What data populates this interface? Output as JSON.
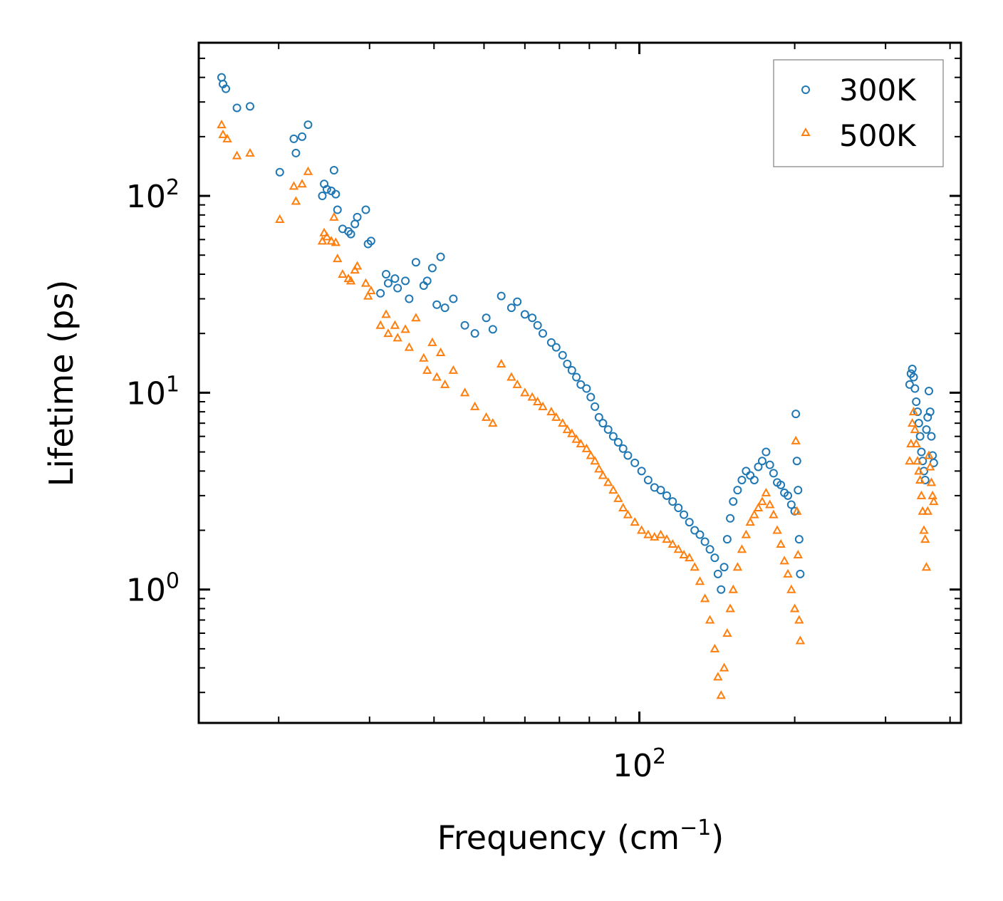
{
  "chart_data": {
    "type": "scatter",
    "title": "",
    "xlabel": "Frequency (cm",
    "xlabel_sup": "−1",
    "xlabel_tail": ")",
    "ylabel": "Lifetime (ps)",
    "x_scale": "log",
    "y_scale": "log",
    "xlim": [
      14,
      420
    ],
    "ylim": [
      0.21,
      600
    ],
    "x_tick_labels": [
      {
        "base": "10",
        "exp": "2",
        "value": 100
      }
    ],
    "y_tick_labels": [
      {
        "base": "10",
        "exp": "0",
        "value": 1
      },
      {
        "base": "10",
        "exp": "1",
        "value": 10
      },
      {
        "base": "10",
        "exp": "2",
        "value": 100
      }
    ],
    "legend": {
      "position": "top-right"
    },
    "colors": {
      "series_300K": "#1f77b4",
      "series_500K": "#ff7f0e"
    },
    "series": [
      {
        "name": "300K",
        "marker": "circle",
        "points": [
          [
            15.5,
            400
          ],
          [
            15.6,
            370
          ],
          [
            15.8,
            350
          ],
          [
            16.6,
            280
          ],
          [
            17.6,
            285
          ],
          [
            20.1,
            132
          ],
          [
            21.4,
            195
          ],
          [
            21.6,
            165
          ],
          [
            22.2,
            200
          ],
          [
            22.8,
            230
          ],
          [
            24.3,
            100
          ],
          [
            24.5,
            115
          ],
          [
            24.8,
            108
          ],
          [
            25.3,
            106
          ],
          [
            25.8,
            102
          ],
          [
            25.6,
            135
          ],
          [
            26.0,
            85
          ],
          [
            26.6,
            68
          ],
          [
            27.3,
            66
          ],
          [
            27.6,
            64
          ],
          [
            28.1,
            72
          ],
          [
            28.4,
            78
          ],
          [
            29.5,
            85
          ],
          [
            29.8,
            57
          ],
          [
            30.2,
            59
          ],
          [
            31.5,
            32
          ],
          [
            32.3,
            40
          ],
          [
            32.6,
            36
          ],
          [
            33.6,
            38
          ],
          [
            34.0,
            34
          ],
          [
            35.2,
            37
          ],
          [
            35.8,
            30
          ],
          [
            36.9,
            46
          ],
          [
            38.2,
            35
          ],
          [
            38.8,
            37
          ],
          [
            39.7,
            43
          ],
          [
            41.2,
            49
          ],
          [
            40.5,
            28
          ],
          [
            42.0,
            27
          ],
          [
            43.6,
            30
          ],
          [
            45.9,
            22
          ],
          [
            48.0,
            20
          ],
          [
            50.5,
            24
          ],
          [
            52.0,
            21
          ],
          [
            54.0,
            31
          ],
          [
            56.5,
            27
          ],
          [
            58.0,
            29
          ],
          [
            60.0,
            25
          ],
          [
            62.0,
            24
          ],
          [
            63.5,
            22
          ],
          [
            65.0,
            20
          ],
          [
            67.5,
            18
          ],
          [
            69.0,
            17
          ],
          [
            71.0,
            15.5
          ],
          [
            72.5,
            14
          ],
          [
            74.0,
            13
          ],
          [
            75.5,
            12
          ],
          [
            77.0,
            11
          ],
          [
            79.0,
            10.5
          ],
          [
            80.5,
            9.5
          ],
          [
            82.0,
            8.5
          ],
          [
            83.5,
            7.5
          ],
          [
            85.0,
            7
          ],
          [
            87.0,
            6.5
          ],
          [
            89.0,
            6
          ],
          [
            91.0,
            5.6
          ],
          [
            93.0,
            5.2
          ],
          [
            95.0,
            4.8
          ],
          [
            98.0,
            4.4
          ],
          [
            101.0,
            4.0
          ],
          [
            104.0,
            3.6
          ],
          [
            107.0,
            3.3
          ],
          [
            110.0,
            3.2
          ],
          [
            113.0,
            3.0
          ],
          [
            116.0,
            2.8
          ],
          [
            119.0,
            2.6
          ],
          [
            122.0,
            2.4
          ],
          [
            125.0,
            2.2
          ],
          [
            128.0,
            2.0
          ],
          [
            131.0,
            1.9
          ],
          [
            134.0,
            1.75
          ],
          [
            137.0,
            1.6
          ],
          [
            140.0,
            1.45
          ],
          [
            142.0,
            1.2
          ],
          [
            144.0,
            1.0
          ],
          [
            146.0,
            1.3
          ],
          [
            148.0,
            1.8
          ],
          [
            150.0,
            2.3
          ],
          [
            152.0,
            2.8
          ],
          [
            155.0,
            3.2
          ],
          [
            158.0,
            3.6
          ],
          [
            161.0,
            4.0
          ],
          [
            164.0,
            3.8
          ],
          [
            167.0,
            3.6
          ],
          [
            170.0,
            4.2
          ],
          [
            173.0,
            4.5
          ],
          [
            176.0,
            5.0
          ],
          [
            179.0,
            4.3
          ],
          [
            182.0,
            3.9
          ],
          [
            185.0,
            3.5
          ],
          [
            188.0,
            3.4
          ],
          [
            191.0,
            3.1
          ],
          [
            194.0,
            3.0
          ],
          [
            197.0,
            2.7
          ],
          [
            200.0,
            2.5
          ],
          [
            201.0,
            7.8
          ],
          [
            202.0,
            4.5
          ],
          [
            203.0,
            3.2
          ],
          [
            204.0,
            1.8
          ],
          [
            205.0,
            1.2
          ],
          [
            334.0,
            11.0
          ],
          [
            336.0,
            12.5
          ],
          [
            338.0,
            13.2
          ],
          [
            340.0,
            12.0
          ],
          [
            342.0,
            10.5
          ],
          [
            344.0,
            9.0
          ],
          [
            346.0,
            8.0
          ],
          [
            348.0,
            7.0
          ],
          [
            350.0,
            6.0
          ],
          [
            352.0,
            5.0
          ],
          [
            354.0,
            4.5
          ],
          [
            356.0,
            4.0
          ],
          [
            358.0,
            3.6
          ],
          [
            360.0,
            6.5
          ],
          [
            362.0,
            7.5
          ],
          [
            364.0,
            10.2
          ],
          [
            366.0,
            8.0
          ],
          [
            368.0,
            6.0
          ],
          [
            370.0,
            4.8
          ],
          [
            372.0,
            4.4
          ]
        ]
      },
      {
        "name": "500K",
        "marker": "triangle",
        "points": [
          [
            15.5,
            230
          ],
          [
            15.6,
            205
          ],
          [
            15.9,
            195
          ],
          [
            16.6,
            160
          ],
          [
            17.6,
            165
          ],
          [
            20.1,
            76
          ],
          [
            21.4,
            112
          ],
          [
            21.6,
            94
          ],
          [
            22.2,
            115
          ],
          [
            22.8,
            133
          ],
          [
            24.3,
            59
          ],
          [
            24.5,
            65
          ],
          [
            24.8,
            62
          ],
          [
            25.3,
            59
          ],
          [
            25.8,
            58
          ],
          [
            25.6,
            78
          ],
          [
            26.0,
            48
          ],
          [
            26.6,
            40
          ],
          [
            27.3,
            38
          ],
          [
            27.6,
            37
          ],
          [
            28.1,
            42
          ],
          [
            28.4,
            44
          ],
          [
            29.5,
            36
          ],
          [
            29.8,
            31
          ],
          [
            30.2,
            33
          ],
          [
            31.5,
            22
          ],
          [
            32.3,
            25
          ],
          [
            32.6,
            20
          ],
          [
            33.6,
            22
          ],
          [
            34.0,
            19
          ],
          [
            35.2,
            21
          ],
          [
            35.8,
            17
          ],
          [
            36.9,
            24
          ],
          [
            38.2,
            15
          ],
          [
            38.8,
            13
          ],
          [
            39.7,
            18
          ],
          [
            41.2,
            16
          ],
          [
            40.5,
            12
          ],
          [
            42.0,
            11
          ],
          [
            43.6,
            13
          ],
          [
            45.9,
            10
          ],
          [
            48.0,
            8.5
          ],
          [
            50.5,
            7.5
          ],
          [
            52.0,
            7
          ],
          [
            54.0,
            14
          ],
          [
            56.5,
            12
          ],
          [
            58.0,
            11
          ],
          [
            60.0,
            10
          ],
          [
            62.0,
            9.5
          ],
          [
            63.5,
            9
          ],
          [
            65.0,
            8.5
          ],
          [
            67.5,
            8
          ],
          [
            69.0,
            7.5
          ],
          [
            71.0,
            7
          ],
          [
            72.5,
            6.5
          ],
          [
            74.0,
            6.2
          ],
          [
            75.5,
            5.8
          ],
          [
            77.0,
            5.5
          ],
          [
            79.0,
            5.2
          ],
          [
            80.5,
            4.8
          ],
          [
            82.0,
            4.5
          ],
          [
            83.5,
            4.1
          ],
          [
            85.0,
            3.8
          ],
          [
            87.0,
            3.5
          ],
          [
            89.0,
            3.2
          ],
          [
            91.0,
            2.9
          ],
          [
            93.0,
            2.6
          ],
          [
            95.0,
            2.4
          ],
          [
            98.0,
            2.2
          ],
          [
            101.0,
            2.0
          ],
          [
            104.0,
            1.9
          ],
          [
            107.0,
            1.85
          ],
          [
            110.0,
            1.9
          ],
          [
            113.0,
            1.8
          ],
          [
            116.0,
            1.7
          ],
          [
            119.0,
            1.6
          ],
          [
            122.0,
            1.5
          ],
          [
            125.0,
            1.45
          ],
          [
            128.0,
            1.3
          ],
          [
            131.0,
            1.1
          ],
          [
            134.0,
            0.9
          ],
          [
            137.0,
            0.7
          ],
          [
            140.0,
            0.5
          ],
          [
            142.0,
            0.36
          ],
          [
            144.0,
            0.29
          ],
          [
            146.0,
            0.4
          ],
          [
            148.0,
            0.6
          ],
          [
            150.0,
            0.8
          ],
          [
            152.0,
            1.0
          ],
          [
            155.0,
            1.3
          ],
          [
            158.0,
            1.6
          ],
          [
            161.0,
            1.9
          ],
          [
            164.0,
            2.2
          ],
          [
            167.0,
            2.4
          ],
          [
            170.0,
            2.6
          ],
          [
            173.0,
            2.8
          ],
          [
            176.0,
            3.1
          ],
          [
            179.0,
            2.7
          ],
          [
            182.0,
            2.4
          ],
          [
            185.0,
            2.0
          ],
          [
            188.0,
            1.7
          ],
          [
            191.0,
            1.4
          ],
          [
            194.0,
            1.2
          ],
          [
            197.0,
            1.0
          ],
          [
            200.0,
            0.8
          ],
          [
            201.0,
            5.7
          ],
          [
            202.0,
            2.5
          ],
          [
            203.0,
            1.5
          ],
          [
            204.0,
            0.7
          ],
          [
            205.0,
            0.55
          ],
          [
            334.0,
            4.5
          ],
          [
            336.0,
            5.5
          ],
          [
            338.0,
            7.0
          ],
          [
            340.0,
            8.0
          ],
          [
            342.0,
            6.5
          ],
          [
            344.0,
            5.5
          ],
          [
            346.0,
            4.5
          ],
          [
            348.0,
            4.0
          ],
          [
            350.0,
            3.6
          ],
          [
            352.0,
            3.0
          ],
          [
            354.0,
            2.5
          ],
          [
            356.0,
            2.0
          ],
          [
            358.0,
            1.8
          ],
          [
            360.0,
            1.3
          ],
          [
            362.0,
            2.5
          ],
          [
            364.0,
            4.8
          ],
          [
            366.0,
            4.2
          ],
          [
            368.0,
            3.5
          ],
          [
            370.0,
            3.0
          ],
          [
            372.0,
            2.8
          ]
        ]
      }
    ]
  }
}
